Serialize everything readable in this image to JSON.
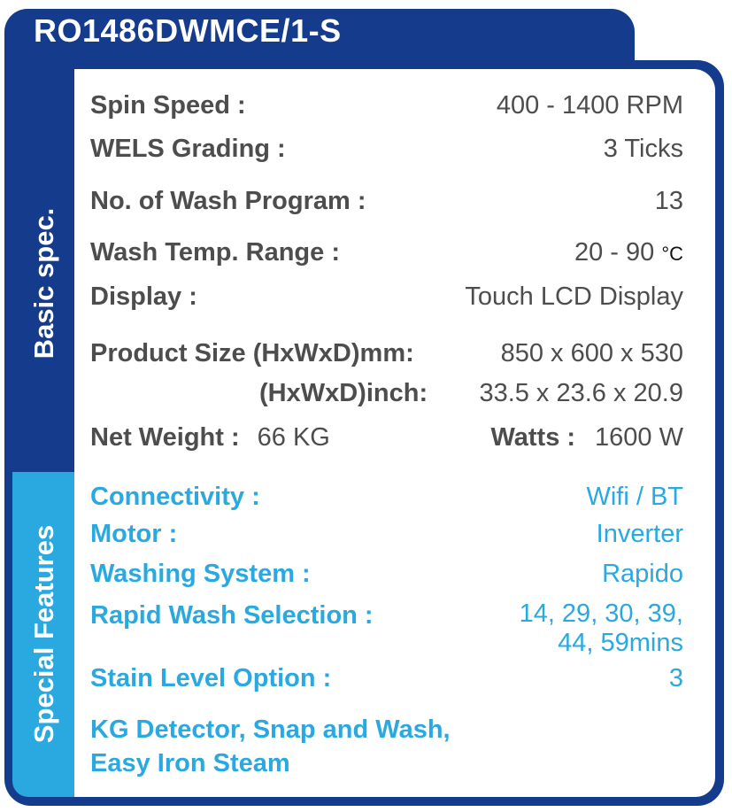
{
  "title": "RO1486DWMCE/1-S",
  "sections": {
    "basic": "Basic spec.",
    "special": "Special Features"
  },
  "basic_spec": {
    "spin_speed": {
      "label": "Spin Speed :",
      "value": "400 - 1400 RPM"
    },
    "wels": {
      "label": "WELS Grading :",
      "value": "3 Ticks"
    },
    "programs": {
      "label": "No. of Wash Program :",
      "value": "13"
    },
    "temp": {
      "label": "Wash Temp. Range :",
      "value": "20 - 90",
      "unit": "°C"
    },
    "display": {
      "label": "Display :",
      "value": "Touch LCD Display"
    },
    "size_mm": {
      "label": "Product Size (HxWxD)mm:",
      "value": "850 x 600 x 530"
    },
    "size_inch": {
      "label": "(HxWxD)inch:",
      "value": "33.5 x 23.6 x 20.9"
    },
    "weight": {
      "label": "Net Weight :",
      "value": "66 KG"
    },
    "watts": {
      "label": "Watts :",
      "value": "1600 W"
    }
  },
  "special_features": {
    "connectivity": {
      "label": "Connectivity :",
      "value": "Wifi / BT"
    },
    "motor": {
      "label": "Motor :",
      "value": "Inverter"
    },
    "washing_system": {
      "label": "Washing System :",
      "value": "Rapido"
    },
    "rapid_wash": {
      "label": "Rapid Wash Selection :",
      "value_line1": "14, 29, 30, 39,",
      "value_line2": "44, 59mins"
    },
    "stain": {
      "label": "Stain Level Option :",
      "value": "3"
    },
    "extras_line1": "KG Detector, Snap and Wash,",
    "extras_line2": "Easy Iron Steam"
  },
  "colors": {
    "navy": "#153c8c",
    "cyan": "#29a9e0",
    "text_gray": "#4d4d4d"
  }
}
